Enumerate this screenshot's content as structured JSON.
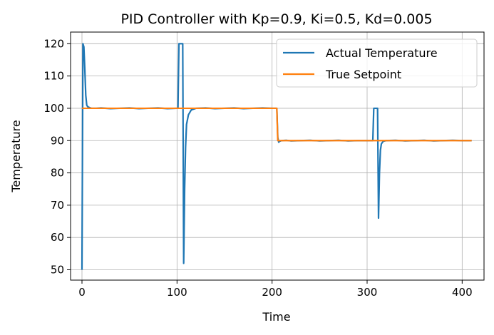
{
  "chart_data": {
    "type": "line",
    "title": "PID Controller with Kp=0.9, Ki=0.5, Kd=0.005",
    "xlabel": "Time",
    "ylabel": "Temperature",
    "xlim": [
      -12,
      423
    ],
    "ylim": [
      46.8,
      123.6
    ],
    "xticks": [
      0,
      100,
      200,
      300,
      400
    ],
    "yticks": [
      50,
      60,
      70,
      80,
      90,
      100,
      110,
      120
    ],
    "grid": true,
    "legend_position": "top-right",
    "series": [
      {
        "name": "Actual Temperature",
        "color": "#1f77b4",
        "x": [
          0,
          1,
          2,
          3,
          4,
          5,
          6,
          8,
          10,
          15,
          20,
          30,
          40,
          50,
          60,
          70,
          80,
          90,
          100,
          101,
          102,
          103,
          104,
          105,
          106,
          107,
          108,
          109,
          110,
          112,
          115,
          120,
          130,
          140,
          150,
          160,
          170,
          180,
          190,
          200,
          204,
          205,
          206,
          207,
          208,
          210,
          215,
          220,
          230,
          240,
          250,
          260,
          270,
          280,
          290,
          300,
          306,
          307,
          308,
          309,
          310,
          311,
          312,
          313,
          314,
          315,
          317,
          320,
          330,
          340,
          350,
          360,
          370,
          380,
          390,
          400,
          410
        ],
        "y": [
          50,
          120,
          119,
          112,
          104,
          101,
          100.5,
          100.2,
          100,
          100,
          100.1,
          99.9,
          100,
          100.1,
          99.9,
          100,
          100.1,
          99.9,
          100,
          100,
          120,
          120,
          120,
          120,
          120,
          52,
          75,
          88,
          95,
          98,
          99.5,
          100,
          100.1,
          99.9,
          100,
          100.1,
          99.9,
          100,
          100.1,
          100,
          100,
          100,
          91,
          89.5,
          89.8,
          90,
          90.1,
          89.9,
          90,
          90.1,
          89.9,
          90,
          90.1,
          89.9,
          90,
          90,
          90,
          100,
          100,
          100,
          100,
          100,
          66,
          80,
          87,
          89,
          89.8,
          90,
          90.1,
          89.9,
          90,
          90.1,
          89.9,
          90,
          90.1,
          90,
          90
        ]
      },
      {
        "name": "True Setpoint",
        "color": "#ff7f0e",
        "x": [
          0,
          205,
          206,
          410
        ],
        "y": [
          100,
          100,
          90,
          90
        ]
      }
    ]
  }
}
